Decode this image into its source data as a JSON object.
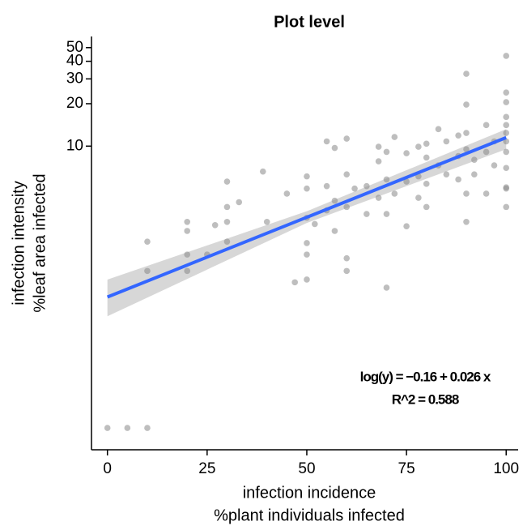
{
  "chart_data": {
    "type": "scatter",
    "title": "Plot level",
    "x_label": [
      "infection incidence",
      "%plant individuals infected"
    ],
    "y_label": [
      "infection intensity",
      "%leaf area infected"
    ],
    "xlim": [
      -4,
      103
    ],
    "ylim": [
      0.07,
      60
    ],
    "log_y": true,
    "xticks": [
      0,
      25,
      50,
      75,
      100
    ],
    "yticks": [
      10,
      20,
      30,
      40,
      50
    ],
    "points": {
      "color": "#888888",
      "x": [
        0,
        5,
        10,
        10,
        10,
        20,
        20,
        20,
        20,
        25,
        27,
        30,
        30,
        30,
        30,
        33,
        39,
        40,
        45,
        47,
        50,
        50,
        50,
        50,
        50,
        50,
        52,
        55,
        55,
        55,
        57,
        57,
        57,
        60,
        60,
        60,
        60,
        60,
        62,
        65,
        65,
        68,
        68,
        68,
        70,
        70,
        70,
        70,
        72,
        72,
        75,
        75,
        75,
        78,
        78,
        78,
        80,
        80,
        80,
        80,
        83,
        83,
        85,
        85,
        88,
        88,
        88,
        90,
        90,
        90,
        90,
        90,
        90,
        92,
        92,
        95,
        95,
        95,
        97,
        97,
        100,
        100,
        100,
        100,
        100,
        100,
        100,
        100,
        100,
        100,
        100,
        100
      ],
      "values": [
        0.1,
        0.1,
        0.1,
        2.1,
        1.3,
        2.9,
        2.5,
        1.7,
        1.3,
        1.7,
        2.75,
        5.6,
        3.7,
        2.9,
        2.1,
        4.0,
        6.6,
        2.9,
        4.6,
        1.08,
        6.1,
        5.0,
        2.05,
        1.7,
        1.13,
        3.1,
        2.8,
        10.8,
        5.2,
        3.5,
        9.7,
        4.1,
        2.5,
        11.3,
        6.3,
        3.7,
        1.6,
        1.3,
        5.0,
        5.2,
        3.3,
        9.9,
        7.8,
        4.3,
        9.1,
        5.8,
        3.3,
        0.99,
        11.6,
        4.6,
        8.9,
        5.6,
        2.7,
        9.9,
        6.1,
        4.3,
        10.4,
        8.3,
        5.4,
        3.7,
        13.2,
        7.3,
        10.8,
        6.3,
        11.9,
        8.5,
        5.8,
        32.6,
        19.7,
        12.4,
        9.5,
        4.6,
        2.9,
        8.0,
        6.3,
        14.1,
        9.1,
        4.6,
        10.8,
        7.3,
        43.7,
        24,
        20.5,
        16.1,
        14.1,
        12.4,
        10.8,
        9.1,
        7.0,
        5.1,
        5.0,
        3.7
      ]
    },
    "band": {
      "color": "#bdbdbd",
      "x": [
        0,
        50,
        100
      ],
      "lower": [
        0.62,
        2.85,
        9.5
      ],
      "upper": [
        1.13,
        3.45,
        13.2
      ]
    },
    "fit": {
      "color": "#3366ff",
      "x": [
        0,
        100
      ],
      "values": [
        0.85,
        11.5
      ]
    },
    "annotations": [
      "log(y) = −0.16 + 0.026 x",
      "R^2 = 0.588"
    ]
  }
}
